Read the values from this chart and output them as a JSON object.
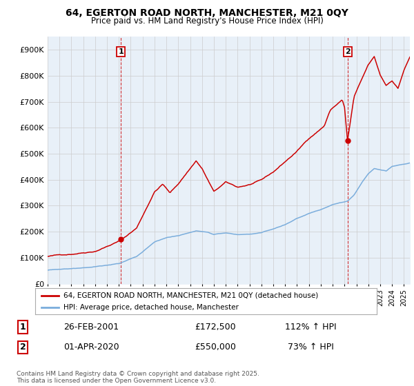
{
  "title": "64, EGERTON ROAD NORTH, MANCHESTER, M21 0QY",
  "subtitle": "Price paid vs. HM Land Registry's House Price Index (HPI)",
  "ylim": [
    0,
    950000
  ],
  "yticks": [
    0,
    100000,
    200000,
    300000,
    400000,
    500000,
    600000,
    700000,
    800000,
    900000
  ],
  "ytick_labels": [
    "£0",
    "£100K",
    "£200K",
    "£300K",
    "£400K",
    "£500K",
    "£600K",
    "£700K",
    "£800K",
    "£900K"
  ],
  "x_start_year": 1995,
  "x_end_year": 2025,
  "line1_color": "#cc0000",
  "line2_color": "#7aaddc",
  "fill_color": "#ddeeff",
  "marker1_year": 2001.167,
  "marker1_value": 172500,
  "marker2_year": 2020.25,
  "marker2_value": 550000,
  "legend_line1": "64, EGERTON ROAD NORTH, MANCHESTER, M21 0QY (detached house)",
  "legend_line2": "HPI: Average price, detached house, Manchester",
  "table_row1": [
    "1",
    "26-FEB-2001",
    "£172,500",
    "112% ↑ HPI"
  ],
  "table_row2": [
    "2",
    "01-APR-2020",
    "£550,000",
    "73% ↑ HPI"
  ],
  "footnote": "Contains HM Land Registry data © Crown copyright and database right 2025.\nThis data is licensed under the Open Government Licence v3.0.",
  "background_color": "#ffffff",
  "grid_color": "#cccccc",
  "chart_bg": "#e8f0f8"
}
